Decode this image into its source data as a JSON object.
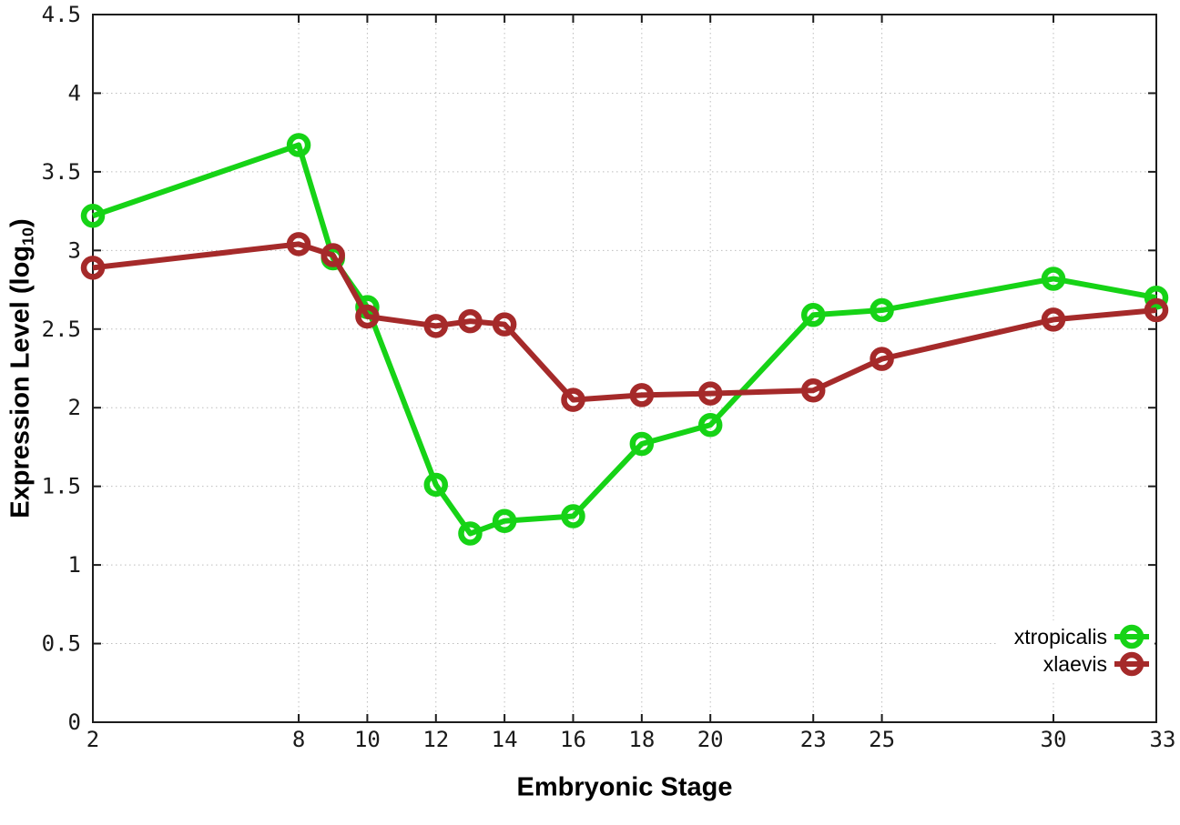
{
  "chart_data": {
    "type": "line",
    "title": "",
    "xlabel": "Embryonic Stage",
    "ylabel": "Expression Level (log10)",
    "ylabel_parts": {
      "main": "Expression Level (log",
      "sub": "10",
      "close": ")"
    },
    "x": [
      2,
      8,
      9,
      10,
      12,
      13,
      14,
      16,
      18,
      20,
      23,
      25,
      30,
      33
    ],
    "series": [
      {
        "name": "xtropicalis",
        "color": "#16d316",
        "values": [
          3.22,
          3.67,
          2.95,
          2.64,
          1.51,
          1.2,
          1.28,
          1.31,
          1.77,
          1.89,
          2.59,
          2.62,
          2.82,
          2.7
        ]
      },
      {
        "name": "xlaevis",
        "color": "#a52a2a",
        "values": [
          2.89,
          3.04,
          2.97,
          2.58,
          2.52,
          2.55,
          2.53,
          2.05,
          2.08,
          2.09,
          2.11,
          2.31,
          2.56,
          2.62
        ]
      }
    ],
    "xlim": [
      2,
      33
    ],
    "ylim": [
      0,
      4.5
    ],
    "xticks": {
      "values": [
        2,
        8,
        10,
        12,
        14,
        16,
        18,
        20,
        23,
        25,
        30,
        33
      ],
      "labels": [
        "2",
        "8",
        "10",
        "12",
        "14",
        "16",
        "18",
        "20",
        "23",
        "25",
        "30",
        "33"
      ]
    },
    "yticks": {
      "values": [
        0,
        0.5,
        1,
        1.5,
        2,
        2.5,
        3,
        3.5,
        4,
        4.5
      ],
      "labels": [
        "0",
        "0.5",
        "1",
        "1.5",
        "2",
        "2.5",
        "3",
        "3.5",
        "4",
        "4.5"
      ]
    },
    "grid": true,
    "legend_position": "bottom-right",
    "marker": "open-circle"
  },
  "colors": {
    "background": "#ffffff",
    "axis": "#1c1c1c",
    "grid": "#bdbdbd",
    "text": "#000000"
  }
}
